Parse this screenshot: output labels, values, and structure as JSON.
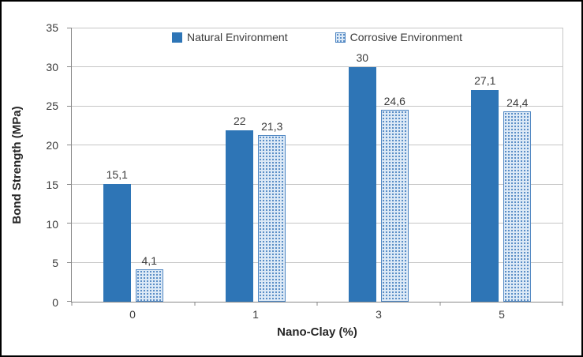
{
  "chart_data": {
    "type": "bar",
    "title": "",
    "xlabel": "Nano-Clay (%)",
    "ylabel": "Bond Strength (MPa)",
    "categories": [
      "0",
      "1",
      "3",
      "5"
    ],
    "series": [
      {
        "name": "Natural Environment",
        "values": [
          15.1,
          22,
          30,
          27.1
        ],
        "labels": [
          "15,1",
          "22",
          "30",
          "27,1"
        ],
        "color": "#2E75B6",
        "pattern": "solid"
      },
      {
        "name": "Corrosive Environment",
        "values": [
          4.1,
          21.3,
          24.6,
          24.4
        ],
        "labels": [
          "4,1",
          "21,3",
          "24,6",
          "24,4"
        ],
        "color": "#DCE9F6",
        "dot_color": "#4F86C2",
        "pattern": "dotted"
      }
    ],
    "ylim": [
      0,
      35
    ],
    "yticks": [
      0,
      5,
      10,
      15,
      20,
      25,
      30,
      35
    ],
    "grid": true,
    "legend_position": "top-center"
  },
  "colors": {
    "grid": "#C6C6C6",
    "axis": "#898989",
    "text": "#3B3B3B",
    "frame": "#000000",
    "background": "#FFFFFF"
  }
}
